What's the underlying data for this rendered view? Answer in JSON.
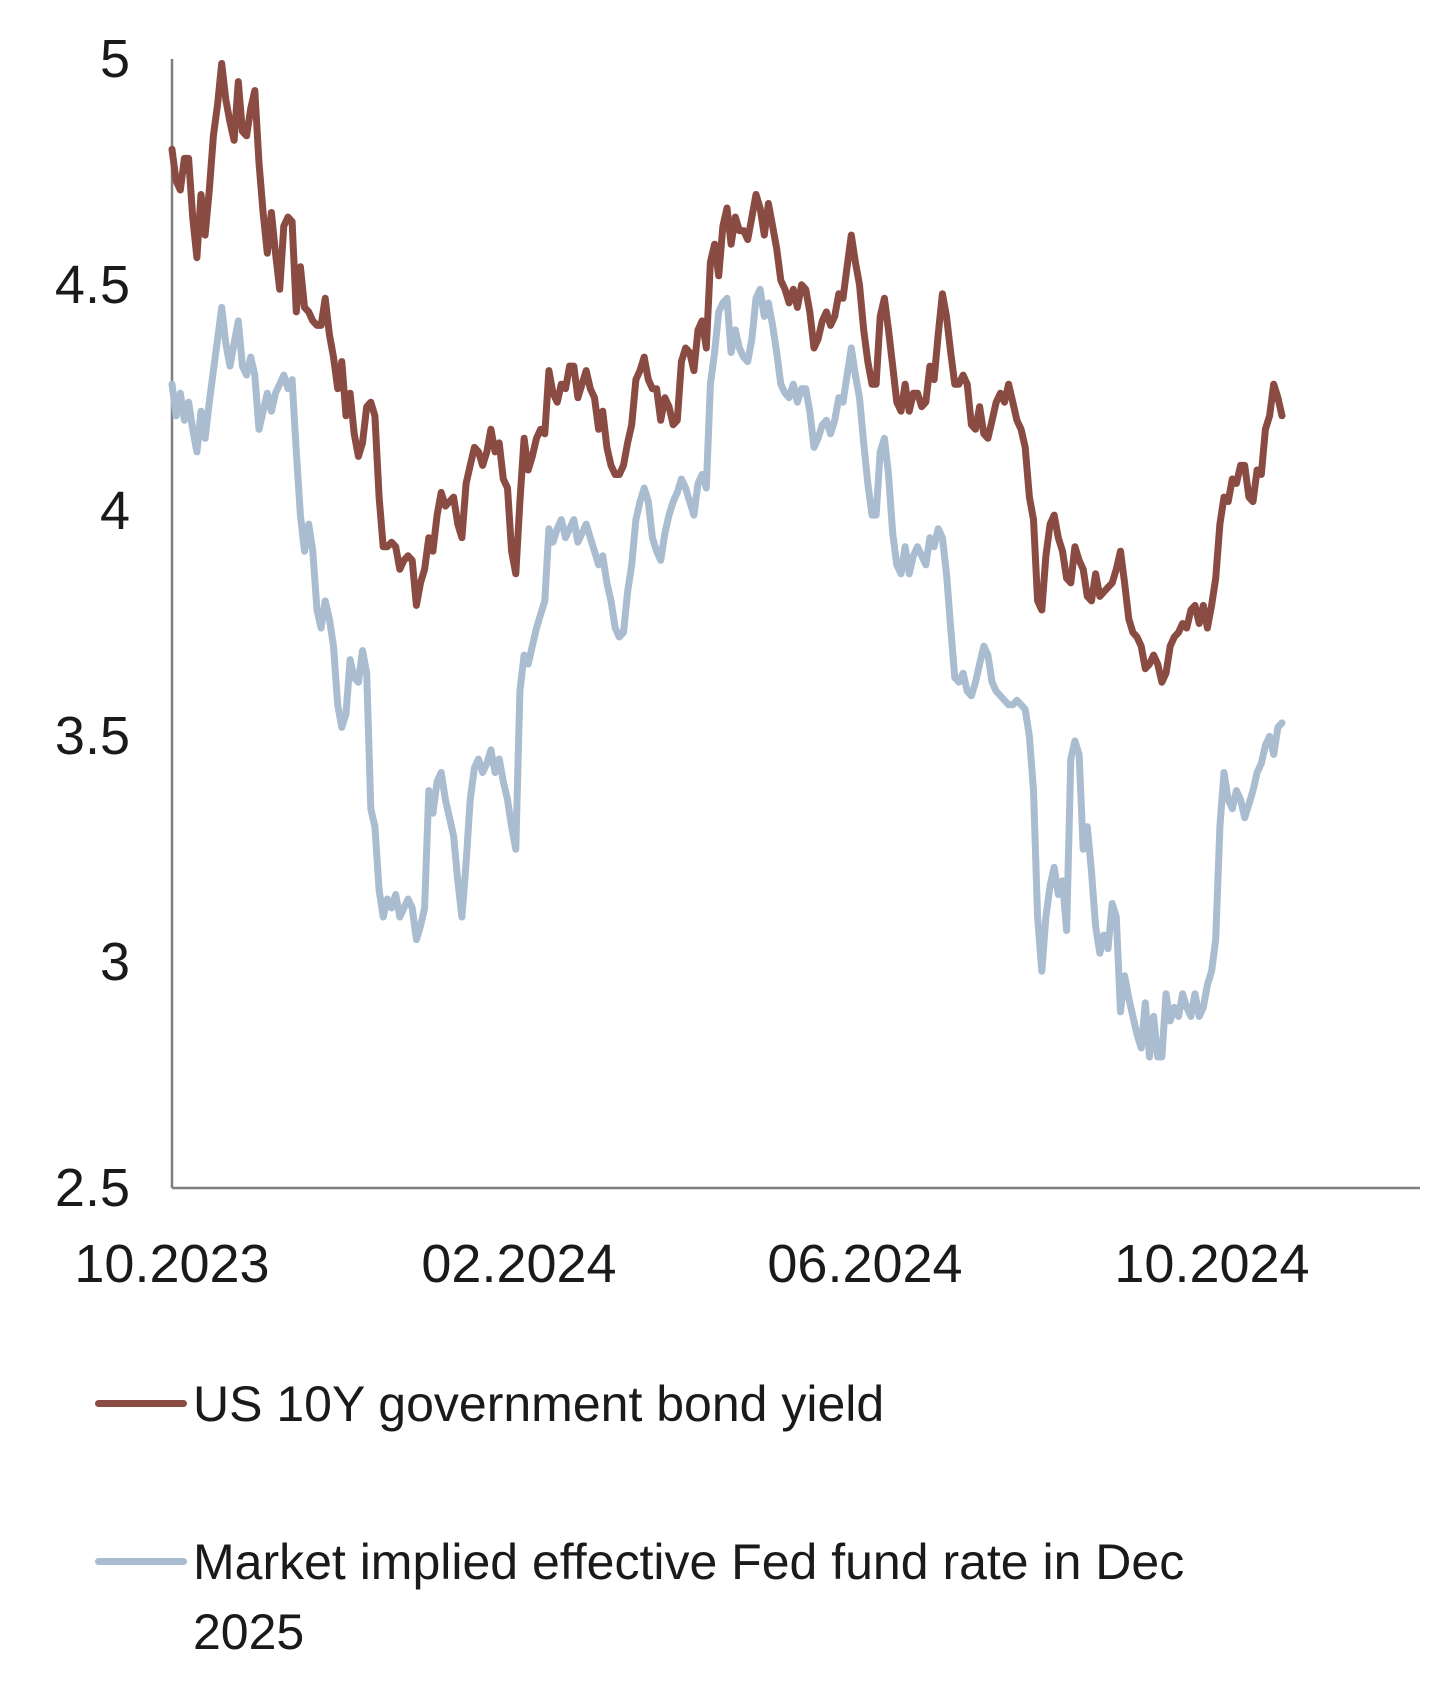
{
  "background_color": "#ffffff",
  "text_color": "#1a1a1a",
  "axis_color": "#7f7f7f",
  "chart_data": {
    "type": "line",
    "title": "",
    "xlabel": "",
    "ylabel": "",
    "grid": false,
    "legend_position": "bottom-left",
    "x_axis": {
      "tick_labels": [
        "10.2023",
        "02.2024",
        "06.2024",
        "10.2024"
      ],
      "tick_months_from_start": [
        0,
        4,
        8,
        12
      ],
      "range_note": "daily data from Oct 2023 through late Oct 2024"
    },
    "y_axis": {
      "min": 2.5,
      "max": 5,
      "ticks": [
        5,
        4.5,
        4,
        3.5,
        3,
        2.5
      ],
      "tick_labels": [
        "5",
        "4.5",
        "4",
        "3.5",
        "3",
        "2.5"
      ]
    },
    "series": [
      {
        "name": "US 10Y government bond yield",
        "color": "#8a4b42",
        "values": [
          4.8,
          4.73,
          4.71,
          4.78,
          4.78,
          4.65,
          4.56,
          4.7,
          4.61,
          4.71,
          4.83,
          4.9,
          4.99,
          4.91,
          4.86,
          4.82,
          4.95,
          4.84,
          4.83,
          4.89,
          4.93,
          4.77,
          4.66,
          4.57,
          4.66,
          4.57,
          4.49,
          4.63,
          4.65,
          4.64,
          4.44,
          4.54,
          4.45,
          4.44,
          4.42,
          4.41,
          4.41,
          4.47,
          4.39,
          4.34,
          4.27,
          4.33,
          4.21,
          4.26,
          4.17,
          4.12,
          4.15,
          4.23,
          4.24,
          4.21,
          4.03,
          3.92,
          3.92,
          3.93,
          3.92,
          3.87,
          3.89,
          3.9,
          3.89,
          3.79,
          3.84,
          3.87,
          3.94,
          3.91,
          3.99,
          4.04,
          4.01,
          4.02,
          4.03,
          3.97,
          3.94,
          4.06,
          4.1,
          4.14,
          4.13,
          4.1,
          4.13,
          4.18,
          4.13,
          4.15,
          4.07,
          4.05,
          3.91,
          3.86,
          4.02,
          4.16,
          4.09,
          4.12,
          4.16,
          4.18,
          4.17,
          4.31,
          4.26,
          4.24,
          4.28,
          4.27,
          4.32,
          4.32,
          4.25,
          4.28,
          4.31,
          4.27,
          4.25,
          4.18,
          4.22,
          4.14,
          4.1,
          4.08,
          4.08,
          4.1,
          4.15,
          4.19,
          4.29,
          4.31,
          4.34,
          4.29,
          4.27,
          4.27,
          4.2,
          4.25,
          4.23,
          4.19,
          4.2,
          4.33,
          4.36,
          4.35,
          4.31,
          4.4,
          4.42,
          4.36,
          4.55,
          4.59,
          4.52,
          4.63,
          4.67,
          4.59,
          4.65,
          4.62,
          4.62,
          4.6,
          4.65,
          4.7,
          4.67,
          4.61,
          4.68,
          4.63,
          4.58,
          4.51,
          4.49,
          4.46,
          4.49,
          4.45,
          4.5,
          4.49,
          4.44,
          4.36,
          4.38,
          4.42,
          4.44,
          4.41,
          4.43,
          4.48,
          4.47,
          4.54,
          4.61,
          4.55,
          4.5,
          4.4,
          4.33,
          4.28,
          4.28,
          4.43,
          4.47,
          4.4,
          4.32,
          4.24,
          4.22,
          4.28,
          4.22,
          4.26,
          4.26,
          4.23,
          4.24,
          4.32,
          4.29,
          4.39,
          4.48,
          4.43,
          4.35,
          4.28,
          4.28,
          4.3,
          4.28,
          4.19,
          4.18,
          4.23,
          4.17,
          4.16,
          4.2,
          4.24,
          4.26,
          4.24,
          4.28,
          4.24,
          4.2,
          4.18,
          4.14,
          4.03,
          3.98,
          3.8,
          3.78,
          3.9,
          3.97,
          3.99,
          3.94,
          3.91,
          3.85,
          3.84,
          3.92,
          3.89,
          3.87,
          3.81,
          3.8,
          3.86,
          3.81,
          3.82,
          3.83,
          3.84,
          3.87,
          3.91,
          3.84,
          3.76,
          3.73,
          3.72,
          3.7,
          3.65,
          3.66,
          3.68,
          3.66,
          3.62,
          3.64,
          3.7,
          3.72,
          3.73,
          3.75,
          3.74,
          3.78,
          3.79,
          3.75,
          3.79,
          3.74,
          3.79,
          3.85,
          3.97,
          4.03,
          4.02,
          4.07,
          4.06,
          4.1,
          4.1,
          4.03,
          4.02,
          4.09,
          4.08,
          4.18,
          4.21,
          4.28,
          4.25,
          4.21
        ]
      },
      {
        "name": "Market implied effective Fed fund rate in Dec 2025",
        "color": "#a9bcd0",
        "values": [
          4.28,
          4.21,
          4.26,
          4.2,
          4.24,
          4.18,
          4.13,
          4.22,
          4.16,
          4.24,
          4.31,
          4.38,
          4.45,
          4.37,
          4.32,
          4.37,
          4.42,
          4.32,
          4.3,
          4.34,
          4.3,
          4.18,
          4.22,
          4.26,
          4.22,
          4.26,
          4.28,
          4.3,
          4.27,
          4.29,
          4.13,
          3.99,
          3.91,
          3.97,
          3.91,
          3.78,
          3.74,
          3.8,
          3.76,
          3.7,
          3.57,
          3.52,
          3.55,
          3.67,
          3.63,
          3.62,
          3.69,
          3.64,
          3.34,
          3.3,
          3.16,
          3.1,
          3.14,
          3.12,
          3.15,
          3.1,
          3.12,
          3.14,
          3.12,
          3.05,
          3.08,
          3.12,
          3.38,
          3.33,
          3.4,
          3.42,
          3.36,
          3.32,
          3.28,
          3.18,
          3.1,
          3.22,
          3.36,
          3.43,
          3.45,
          3.42,
          3.44,
          3.47,
          3.42,
          3.45,
          3.4,
          3.36,
          3.3,
          3.25,
          3.6,
          3.68,
          3.66,
          3.7,
          3.74,
          3.77,
          3.8,
          3.96,
          3.93,
          3.96,
          3.98,
          3.94,
          3.96,
          3.98,
          3.93,
          3.95,
          3.97,
          3.94,
          3.91,
          3.88,
          3.9,
          3.84,
          3.8,
          3.74,
          3.72,
          3.73,
          3.82,
          3.88,
          3.98,
          4.02,
          4.05,
          4.02,
          3.94,
          3.91,
          3.89,
          3.95,
          3.99,
          4.02,
          4.04,
          4.07,
          4.05,
          4.02,
          3.99,
          4.06,
          4.08,
          4.05,
          4.28,
          4.35,
          4.44,
          4.46,
          4.47,
          4.35,
          4.4,
          4.36,
          4.34,
          4.33,
          4.38,
          4.47,
          4.49,
          4.43,
          4.46,
          4.41,
          4.35,
          4.28,
          4.26,
          4.25,
          4.28,
          4.24,
          4.27,
          4.27,
          4.22,
          4.14,
          4.16,
          4.19,
          4.2,
          4.17,
          4.2,
          4.25,
          4.24,
          4.3,
          4.36,
          4.3,
          4.25,
          4.15,
          4.06,
          3.99,
          3.99,
          4.13,
          4.16,
          4.08,
          3.95,
          3.88,
          3.86,
          3.92,
          3.86,
          3.9,
          3.92,
          3.9,
          3.88,
          3.94,
          3.92,
          3.96,
          3.94,
          3.86,
          3.74,
          3.63,
          3.62,
          3.64,
          3.6,
          3.59,
          3.62,
          3.66,
          3.7,
          3.68,
          3.62,
          3.6,
          3.59,
          3.58,
          3.57,
          3.57,
          3.58,
          3.57,
          3.56,
          3.5,
          3.38,
          3.1,
          2.98,
          3.1,
          3.17,
          3.21,
          3.15,
          3.18,
          3.07,
          3.45,
          3.49,
          3.46,
          3.25,
          3.3,
          3.2,
          3.08,
          3.02,
          3.06,
          3.03,
          3.13,
          3.1,
          2.89,
          2.97,
          2.92,
          2.88,
          2.84,
          2.81,
          2.91,
          2.79,
          2.88,
          2.79,
          2.79,
          2.93,
          2.87,
          2.9,
          2.88,
          2.93,
          2.9,
          2.88,
          2.93,
          2.88,
          2.9,
          2.95,
          2.98,
          3.05,
          3.3,
          3.42,
          3.36,
          3.34,
          3.38,
          3.36,
          3.32,
          3.35,
          3.38,
          3.42,
          3.44,
          3.48,
          3.5,
          3.46,
          3.52,
          3.53
        ]
      }
    ]
  },
  "legend": {
    "items": [
      {
        "label": "US 10Y government bond yield",
        "color": "#8a4b42"
      },
      {
        "label": "Market implied effective Fed fund rate in Dec 2025",
        "color": "#a9bcd0"
      }
    ]
  }
}
